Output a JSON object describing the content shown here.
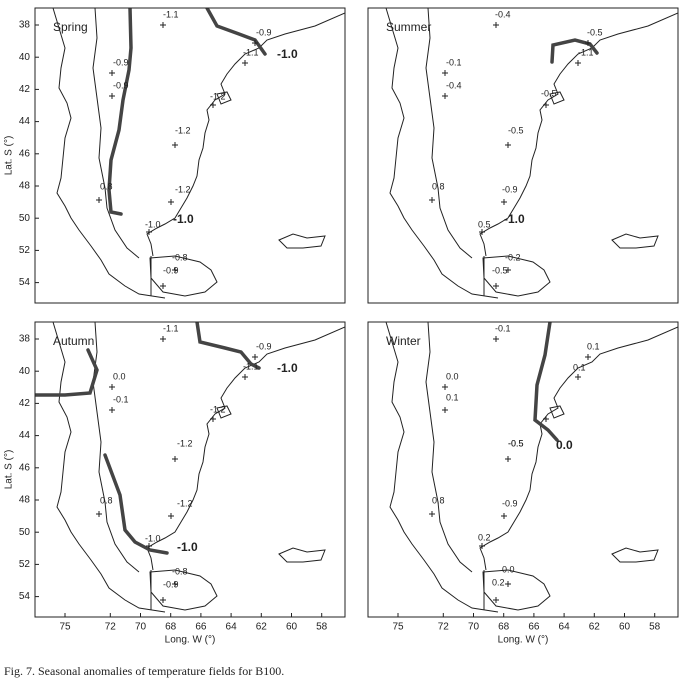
{
  "figure": {
    "panels": [
      {
        "name": "Spring",
        "labels": [
          "-1.1",
          "-0.9",
          "-1.1",
          "-0.9",
          "-0.9",
          "-1.2",
          "-1.2",
          "0.8",
          "-1.2",
          "-1.0",
          "-0.8",
          "-0.9"
        ],
        "contour_label": "-1.0"
      },
      {
        "name": "Summer",
        "labels": [
          "-0.4",
          "-0.5",
          "-1.1",
          "-0.1",
          "-0.4",
          "-0.5",
          "-0.5",
          "0.8",
          "-0.9",
          "0.5",
          "-0.2",
          "-0.5"
        ],
        "contour_label": "-1.0"
      },
      {
        "name": "Autumn",
        "labels": [
          "-1.1",
          "-0.9",
          "-1.1",
          "0.0",
          "-0.1",
          "-1.2",
          "-1.2",
          "0.8",
          "-1.2",
          "-1.0",
          "-0.8",
          "-0.9"
        ],
        "contour_label": "-1.0"
      },
      {
        "name": "Winter",
        "labels": [
          "-0.1",
          "0.1",
          "0.1",
          "0.0",
          "0.1",
          "-0.5",
          "-0.5",
          "0.8",
          "-0.9",
          "0.2",
          "0.0",
          "0.2"
        ],
        "contour_label": "0.0"
      }
    ],
    "lat_ticks": [
      38,
      40,
      42,
      44,
      46,
      48,
      50,
      52,
      54
    ],
    "lon_ticks": [
      75,
      72,
      70,
      68,
      66,
      64,
      62,
      60,
      58
    ],
    "lat_label": "Lat. S (°)",
    "lon_label": "Long. W (°)",
    "caption": "Fig. 7. Seasonal anomalies of temperature fields for B100."
  }
}
